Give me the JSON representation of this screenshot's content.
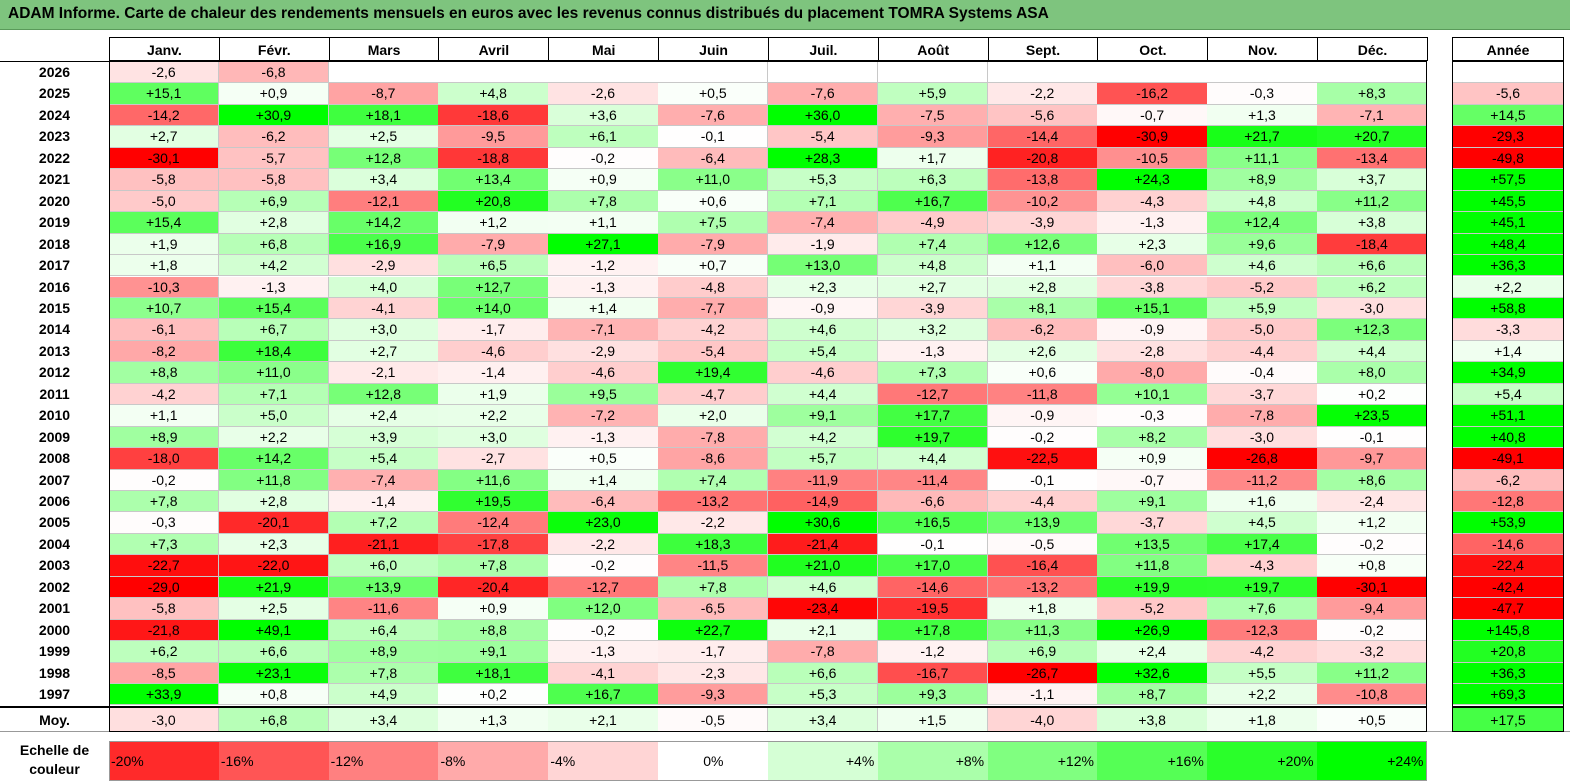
{
  "title": "ADAM Informe. Carte de chaleur des rendements mensuels en euros avec les revenus connus distribués du placement TOMRA Systems ASA",
  "chart_data": {
    "type": "heatmap",
    "months": [
      "Janv.",
      "Févr.",
      "Mars",
      "Avril",
      "Mai",
      "Juin",
      "Juil.",
      "Août",
      "Sept.",
      "Oct.",
      "Nov.",
      "Déc."
    ],
    "year_header": "Année",
    "rows": [
      {
        "year": "2026",
        "values": [
          "-2,6",
          "-6,8",
          "",
          "",
          "",
          "",
          "",
          "",
          "",
          "",
          "",
          ""
        ],
        "annual": ""
      },
      {
        "year": "2025",
        "values": [
          "+15,1",
          "+0,9",
          "-8,7",
          "+4,8",
          "-2,6",
          "+0,5",
          "-7,6",
          "+5,9",
          "-2,2",
          "-16,2",
          "-0,3",
          "+8,3"
        ],
        "annual": "-5,6"
      },
      {
        "year": "2024",
        "values": [
          "-14,2",
          "+30,9",
          "+18,1",
          "-18,6",
          "+3,6",
          "-7,6",
          "+36,0",
          "-7,5",
          "-5,6",
          "-0,7",
          "+1,3",
          "-7,1"
        ],
        "annual": "+14,5"
      },
      {
        "year": "2023",
        "values": [
          "+2,7",
          "-6,2",
          "+2,5",
          "-9,5",
          "+6,1",
          "-0,1",
          "-5,4",
          "-9,3",
          "-14,4",
          "-30,9",
          "+21,7",
          "+20,7"
        ],
        "annual": "-29,3"
      },
      {
        "year": "2022",
        "values": [
          "-30,1",
          "-5,7",
          "+12,8",
          "-18,8",
          "-0,2",
          "-6,4",
          "+28,3",
          "+1,7",
          "-20,8",
          "-10,5",
          "+11,1",
          "-13,4"
        ],
        "annual": "-49,8"
      },
      {
        "year": "2021",
        "values": [
          "-5,8",
          "-5,8",
          "+3,4",
          "+13,4",
          "+0,9",
          "+11,0",
          "+5,3",
          "+6,3",
          "-13,8",
          "+24,3",
          "+8,9",
          "+3,7"
        ],
        "annual": "+57,5"
      },
      {
        "year": "2020",
        "values": [
          "-5,0",
          "+6,9",
          "-12,1",
          "+20,8",
          "+7,8",
          "+0,6",
          "+7,1",
          "+16,7",
          "-10,2",
          "-4,3",
          "+4,8",
          "+11,2"
        ],
        "annual": "+45,5"
      },
      {
        "year": "2019",
        "values": [
          "+15,4",
          "+2,8",
          "+14,2",
          "+1,2",
          "+1,1",
          "+7,5",
          "-7,4",
          "-4,9",
          "-3,9",
          "-1,3",
          "+12,4",
          "+3,8"
        ],
        "annual": "+45,1"
      },
      {
        "year": "2018",
        "values": [
          "+1,9",
          "+6,8",
          "+16,9",
          "-7,9",
          "+27,1",
          "-7,9",
          "-1,9",
          "+7,4",
          "+12,6",
          "+2,3",
          "+9,6",
          "-18,4"
        ],
        "annual": "+48,4"
      },
      {
        "year": "2017",
        "values": [
          "+1,8",
          "+4,2",
          "-2,9",
          "+6,5",
          "-1,2",
          "+0,7",
          "+13,0",
          "+4,8",
          "+1,1",
          "-6,0",
          "+4,6",
          "+6,6"
        ],
        "annual": "+36,3"
      },
      {
        "year": "2016",
        "values": [
          "-10,3",
          "-1,3",
          "+4,0",
          "+12,7",
          "-1,3",
          "-4,8",
          "+2,3",
          "+2,7",
          "+2,8",
          "-3,8",
          "-5,2",
          "+6,2"
        ],
        "annual": "+2,2"
      },
      {
        "year": "2015",
        "values": [
          "+10,7",
          "+15,4",
          "-4,1",
          "+14,0",
          "+1,4",
          "-7,7",
          "-0,9",
          "-3,9",
          "+8,1",
          "+15,1",
          "+5,9",
          "-3,0"
        ],
        "annual": "+58,8"
      },
      {
        "year": "2014",
        "values": [
          "-6,1",
          "+6,7",
          "+3,0",
          "-1,7",
          "-7,1",
          "-4,2",
          "+4,6",
          "+3,2",
          "-6,2",
          "-0,9",
          "-5,0",
          "+12,3"
        ],
        "annual": "-3,3"
      },
      {
        "year": "2013",
        "values": [
          "-8,2",
          "+18,4",
          "+2,7",
          "-4,6",
          "-2,9",
          "-5,4",
          "+5,4",
          "-1,3",
          "+2,6",
          "-2,8",
          "-4,4",
          "+4,4"
        ],
        "annual": "+1,4"
      },
      {
        "year": "2012",
        "values": [
          "+8,8",
          "+11,0",
          "-2,1",
          "-1,4",
          "-4,6",
          "+19,4",
          "-4,6",
          "+7,3",
          "+0,6",
          "-8,0",
          "-0,4",
          "+8,0"
        ],
        "annual": "+34,9"
      },
      {
        "year": "2011",
        "values": [
          "-4,2",
          "+7,1",
          "+12,8",
          "+1,9",
          "+9,5",
          "-4,7",
          "+4,4",
          "-12,7",
          "-11,8",
          "+10,1",
          "-3,7",
          "+0,2"
        ],
        "annual": "+5,4"
      },
      {
        "year": "2010",
        "values": [
          "+1,1",
          "+5,0",
          "+2,4",
          "+2,2",
          "-7,2",
          "+2,0",
          "+9,1",
          "+17,7",
          "-0,9",
          "-0,3",
          "-7,8",
          "+23,5"
        ],
        "annual": "+51,1"
      },
      {
        "year": "2009",
        "values": [
          "+8,9",
          "+2,2",
          "+3,9",
          "+3,0",
          "-1,3",
          "-7,8",
          "+4,2",
          "+19,7",
          "-0,2",
          "+8,2",
          "-3,0",
          "-0,1"
        ],
        "annual": "+40,8"
      },
      {
        "year": "2008",
        "values": [
          "-18,0",
          "+14,2",
          "+5,4",
          "-2,7",
          "+0,5",
          "-8,6",
          "+5,7",
          "+4,4",
          "-22,5",
          "+0,9",
          "-26,8",
          "-9,7"
        ],
        "annual": "-49,1"
      },
      {
        "year": "2007",
        "values": [
          "-0,2",
          "+11,8",
          "-7,4",
          "+11,6",
          "+1,4",
          "+7,4",
          "-11,9",
          "-11,4",
          "-0,1",
          "-0,7",
          "-11,2",
          "+8,6"
        ],
        "annual": "-6,2"
      },
      {
        "year": "2006",
        "values": [
          "+7,8",
          "+2,8",
          "-1,4",
          "+19,5",
          "-6,4",
          "-13,2",
          "-14,9",
          "-6,6",
          "-4,4",
          "+9,1",
          "+1,6",
          "-2,4"
        ],
        "annual": "-12,8"
      },
      {
        "year": "2005",
        "values": [
          "-0,3",
          "-20,1",
          "+7,2",
          "-12,4",
          "+23,0",
          "-2,2",
          "+30,6",
          "+16,5",
          "+13,9",
          "-3,7",
          "+4,5",
          "+1,2"
        ],
        "annual": "+53,9"
      },
      {
        "year": "2004",
        "values": [
          "+7,3",
          "+2,3",
          "-21,1",
          "-17,8",
          "-2,2",
          "+18,3",
          "-21,4",
          "-0,1",
          "-0,5",
          "+13,5",
          "+17,4",
          "-0,2"
        ],
        "annual": "-14,6"
      },
      {
        "year": "2003",
        "values": [
          "-22,7",
          "-22,0",
          "+6,0",
          "+7,8",
          "-0,2",
          "-11,5",
          "+21,0",
          "+17,0",
          "-16,4",
          "+11,8",
          "-4,3",
          "+0,8"
        ],
        "annual": "-22,4"
      },
      {
        "year": "2002",
        "values": [
          "-29,0",
          "+21,9",
          "+13,9",
          "-20,4",
          "-12,7",
          "+7,8",
          "+4,6",
          "-14,6",
          "-13,2",
          "+19,9",
          "+19,7",
          "-30,1"
        ],
        "annual": "-42,4"
      },
      {
        "year": "2001",
        "values": [
          "-5,8",
          "+2,5",
          "-11,6",
          "+0,9",
          "+12,0",
          "-6,5",
          "-23,4",
          "-19,5",
          "+1,8",
          "-5,2",
          "+7,6",
          "-9,4"
        ],
        "annual": "-47,7"
      },
      {
        "year": "2000",
        "values": [
          "-21,8",
          "+49,1",
          "+6,4",
          "+8,8",
          "-0,2",
          "+22,7",
          "+2,1",
          "+17,8",
          "+11,3",
          "+26,9",
          "-12,3",
          "-0,2"
        ],
        "annual": "+145,8"
      },
      {
        "year": "1999",
        "values": [
          "+6,2",
          "+6,6",
          "+8,9",
          "+9,1",
          "-1,3",
          "-1,7",
          "-7,8",
          "-1,2",
          "+6,9",
          "+2,4",
          "-4,2",
          "-3,2"
        ],
        "annual": "+20,8"
      },
      {
        "year": "1998",
        "values": [
          "-8,5",
          "+23,1",
          "+7,8",
          "+18,1",
          "-4,1",
          "-2,3",
          "+6,6",
          "-16,7",
          "-26,7",
          "+32,6",
          "+5,5",
          "+11,2"
        ],
        "annual": "+36,3"
      },
      {
        "year": "1997",
        "values": [
          "+33,9",
          "+0,8",
          "+4,9",
          "+0,2",
          "+16,7",
          "-9,3",
          "+5,3",
          "+9,3",
          "-1,1",
          "+8,7",
          "+2,2",
          "-10,8"
        ],
        "annual": "+69,3"
      }
    ],
    "average": {
      "label": "Moy.",
      "values": [
        "-3,0",
        "+6,8",
        "+3,4",
        "+1,3",
        "+2,1",
        "-0,5",
        "+3,4",
        "+1,5",
        "-4,0",
        "+3,8",
        "+1,8",
        "+0,5"
      ],
      "annual": "+17,5"
    },
    "scale": {
      "label": "Echelle de couleur",
      "items": [
        {
          "label": "-20%",
          "value": -20
        },
        {
          "label": "-16%",
          "value": -16
        },
        {
          "label": "-12%",
          "value": -12
        },
        {
          "label": "-8%",
          "value": -8
        },
        {
          "label": "-4%",
          "value": -4
        },
        {
          "label": "0%",
          "value": 0
        },
        {
          "label": "+4%",
          "value": 4
        },
        {
          "label": "+8%",
          "value": 8
        },
        {
          "label": "+12%",
          "value": 12
        },
        {
          "label": "+16%",
          "value": 16
        },
        {
          "label": "+20%",
          "value": 20
        },
        {
          "label": "+24%",
          "value": 24
        }
      ]
    },
    "colors": {
      "negative": "#ff0000",
      "positive": "#00ff00",
      "neutral": "#ffffff",
      "title_bar": "#7ec47e"
    }
  }
}
